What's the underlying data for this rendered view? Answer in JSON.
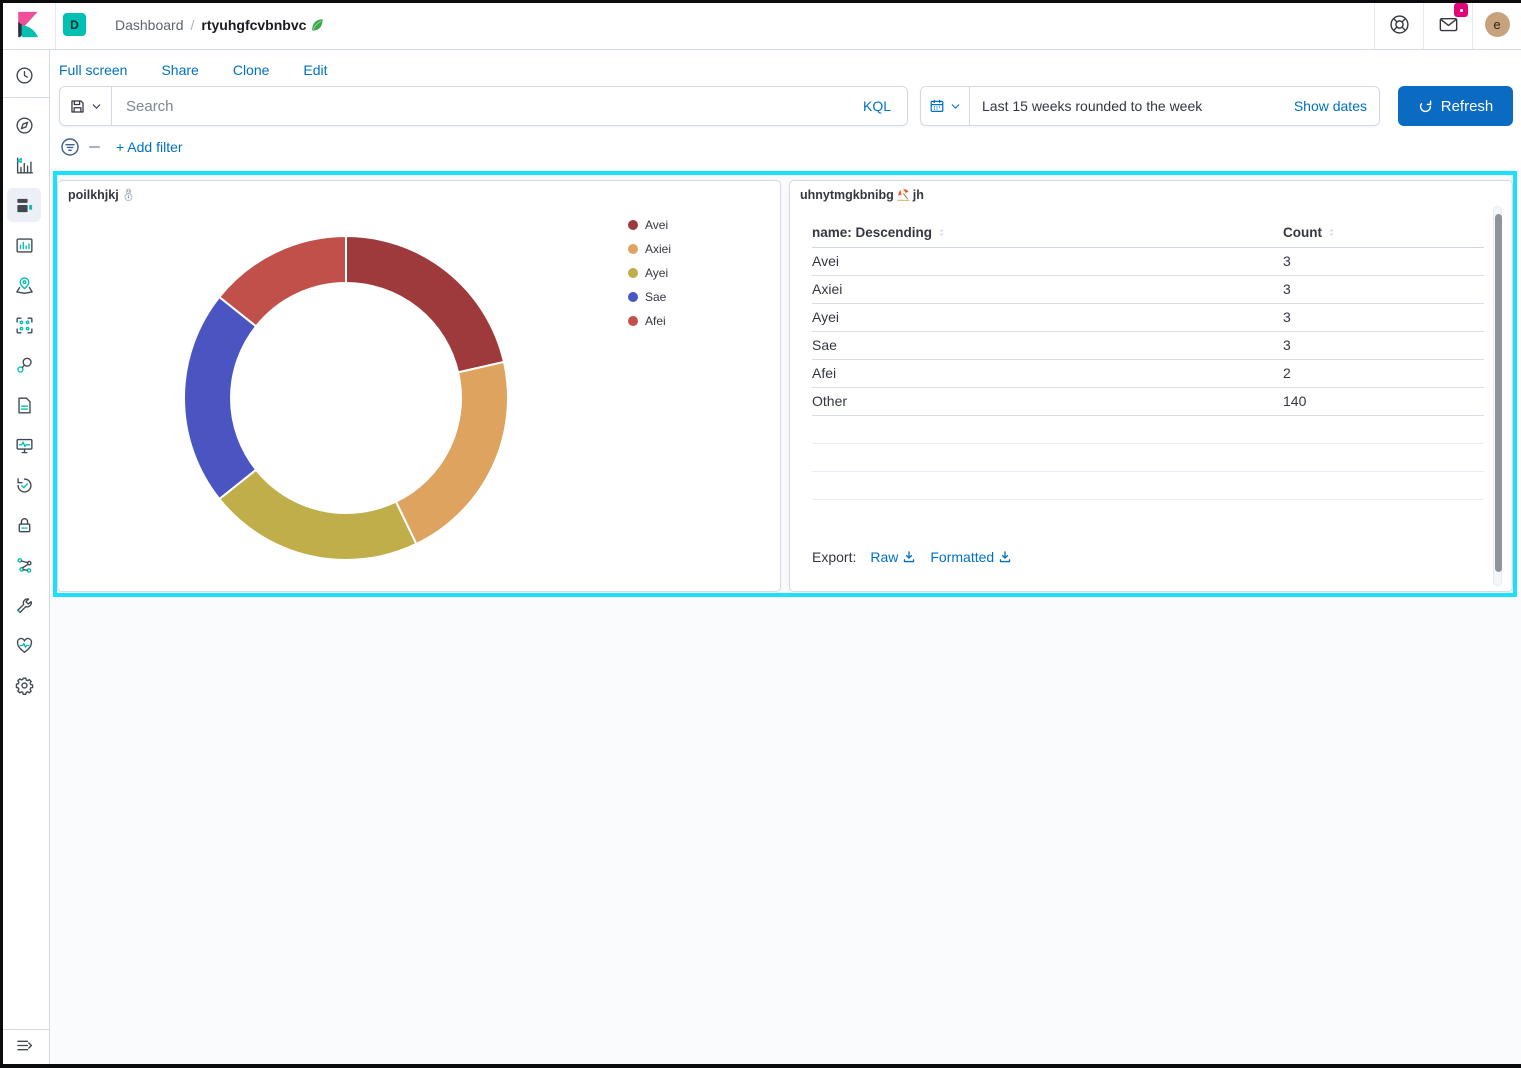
{
  "header": {
    "logo_icon": "kibana-logo",
    "space_badge": "D",
    "breadcrumb": {
      "section": "Dashboard",
      "separator": "/",
      "title": "rtyuhgfcvbnbvc",
      "title_emoji": "🥬"
    },
    "actions": {
      "help_icon": "lifebuoy-help",
      "newsfeed_icon": "envelope-with-badge",
      "badge_color": "#e0067a",
      "avatar_initial": "e"
    }
  },
  "menu": {
    "items": [
      "Full screen",
      "Share",
      "Clone",
      "Edit"
    ]
  },
  "query_bar": {
    "save_icon": "save-query",
    "search_placeholder": "Search",
    "kql_label": "KQL",
    "calendar_icon": "calendar",
    "date_text": "Last 15 weeks rounded to the week",
    "show_dates_label": "Show dates",
    "refresh_label": "Refresh",
    "refresh_icon": "refresh-arrow",
    "accent_color": "#0071c2"
  },
  "filter_bar": {
    "filter_icon": "filter-circle",
    "add_filter_label": "+ Add filter"
  },
  "selection_highlight_color": "#19e1ff",
  "pie_panel": {
    "title": "poilkhjkj",
    "title_emoji": "☃️",
    "title_emoji_icon": "snowman-emoji"
  },
  "table_panel": {
    "title_prefix": "uhnytmgkbnibg",
    "title_emoji": "⛱️",
    "title_emoji_icon": "beach-umbrella-emoji",
    "title_suffix": "jh",
    "table": {
      "columns": [
        "name: Descending",
        "Count"
      ],
      "rows": [
        {
          "name": "Avei",
          "count": "3"
        },
        {
          "name": "Axiei",
          "count": "3"
        },
        {
          "name": "Ayei",
          "count": "3"
        },
        {
          "name": "Sae",
          "count": "3"
        },
        {
          "name": "Afei",
          "count": "2"
        },
        {
          "name": "Other",
          "count": "140"
        }
      ]
    },
    "export": {
      "label": "Export:",
      "raw": "Raw",
      "formatted": "Formatted",
      "download_icon": "download-arrow"
    }
  },
  "chart_data": [
    {
      "type": "pie",
      "donut": true,
      "title": "poilkhjkj",
      "labels": [
        "Avei",
        "Axiei",
        "Ayei",
        "Sae",
        "Afei"
      ],
      "values": [
        3,
        3,
        3,
        3,
        2
      ],
      "colors": [
        "#9e3a3b",
        "#dea35e",
        "#bfae4a",
        "#4a55c2",
        "#c1504a"
      ],
      "legend_position": "right",
      "start_angle_deg": 0,
      "clockwise": true
    },
    {
      "type": "table",
      "title": "uhnytmgkbnibg jh",
      "columns": [
        "name: Descending",
        "Count"
      ],
      "rows": [
        [
          "Avei",
          3
        ],
        [
          "Axiei",
          3
        ],
        [
          "Ayei",
          3
        ],
        [
          "Sae",
          3
        ],
        [
          "Afei",
          2
        ],
        [
          "Other",
          140
        ]
      ]
    }
  ],
  "sidebar": {
    "selected": "dashboard",
    "top_item": "recently-viewed",
    "items": [
      "discover",
      "visualize",
      "dashboard",
      "canvas",
      "maps",
      "machine-learning",
      "graph",
      "logs",
      "apm",
      "uptime",
      "security",
      "dev-tools",
      "stack-management-wrench",
      "stack-monitoring",
      "settings"
    ],
    "collapse_icon": "collapse-menu"
  }
}
